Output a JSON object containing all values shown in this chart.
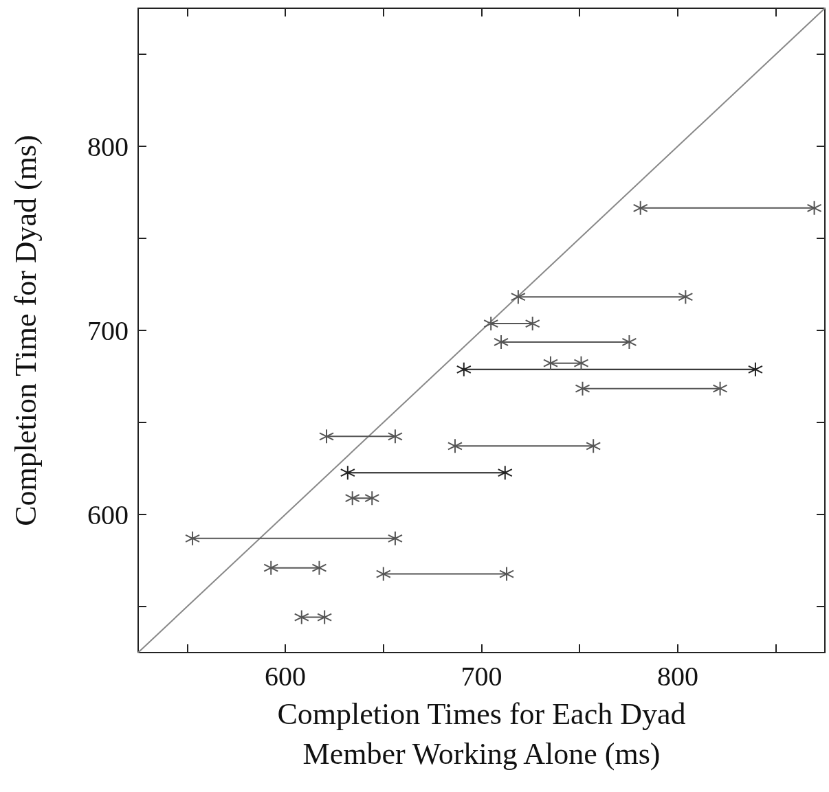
{
  "chart_data": {
    "type": "line",
    "xlabel": "Completion Times for Each Dyad\nMember Working Alone (ms)",
    "ylabel": "Completion Time for Dyad (ms)",
    "xlim": [
      525,
      875
    ],
    "ylim": [
      525,
      875
    ],
    "xticks": [
      {
        "value": 550,
        "label": null
      },
      600,
      {
        "value": 650,
        "label": null
      },
      700,
      {
        "value": 750,
        "label": null
      },
      800,
      {
        "value": 850,
        "label": null
      }
    ],
    "yticks": [
      {
        "value": 550,
        "label": null
      },
      600,
      {
        "value": 650,
        "label": null
      },
      700,
      {
        "value": 750,
        "label": null
      },
      800,
      {
        "value": 850,
        "label": null
      }
    ],
    "grid": false,
    "marker": "cross",
    "line_style": "solid",
    "series": [
      {
        "x": [
          525,
          875
        ],
        "values": [
          525,
          875
        ],
        "color": "#888888",
        "marker": "none"
      },
      {
        "x": [
          781,
          869.6
        ],
        "values": [
          766.5,
          766.5
        ],
        "color": "#555555"
      },
      {
        "x": [
          718.7,
          804
        ],
        "values": [
          718.2,
          718.2
        ],
        "color": "#555555"
      },
      {
        "x": [
          704.8,
          726
        ],
        "values": [
          703.7,
          703.7
        ],
        "color": "#555555"
      },
      {
        "x": [
          710,
          775.3
        ],
        "values": [
          693.7,
          693.7
        ],
        "color": "#555555"
      },
      {
        "x": [
          735.2,
          750.8
        ],
        "values": [
          682.2,
          682.2
        ],
        "color": "#555555"
      },
      {
        "x": [
          691,
          839.6
        ],
        "values": [
          678.8,
          678.8
        ],
        "color": "#222222"
      },
      {
        "x": [
          751.5,
          821.6
        ],
        "values": [
          668.4,
          668.4
        ],
        "color": "#555555"
      },
      {
        "x": [
          621,
          656
        ],
        "values": [
          642.4,
          642.4
        ],
        "color": "#555555"
      },
      {
        "x": [
          686.5,
          757
        ],
        "values": [
          637.2,
          637.2
        ],
        "color": "#555555"
      },
      {
        "x": [
          631.8,
          712
        ],
        "values": [
          622.7,
          622.7
        ],
        "color": "#222222"
      },
      {
        "x": [
          634.2,
          644.2
        ],
        "values": [
          608.9,
          608.9
        ],
        "color": "#555555"
      },
      {
        "x": [
          552.7,
          656
        ],
        "values": [
          587,
          587
        ],
        "color": "#555555"
      },
      {
        "x": [
          592.7,
          617.3
        ],
        "values": [
          571,
          571
        ],
        "color": "#555555"
      },
      {
        "x": [
          650,
          712.8
        ],
        "values": [
          567.7,
          567.7
        ],
        "color": "#555555"
      },
      {
        "x": [
          608.3,
          620
        ],
        "values": [
          544.2,
          544.2
        ],
        "color": "#555555"
      }
    ]
  }
}
